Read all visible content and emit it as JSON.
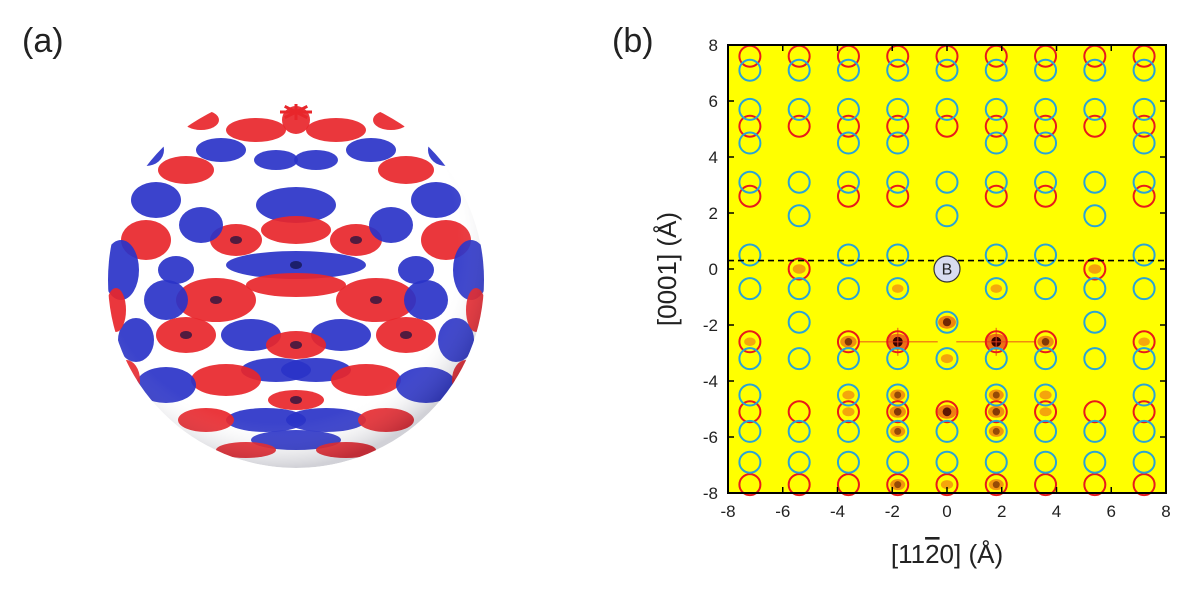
{
  "panels": {
    "a": "(a)",
    "b": "(b)"
  },
  "sphere": {
    "colors": {
      "red": "#e8262b",
      "blue": "#2a33c8",
      "white": "#ffffff",
      "dark": "#101040"
    }
  },
  "chart_data": {
    "type": "scatter",
    "title": "",
    "xlabel": "[11̅2̅0] (Å)",
    "xlabel_parts": {
      "pre": "[11",
      "bar": "2",
      "post": "0] (Å)"
    },
    "ylabel": "[0001] (Å)",
    "xlim": [
      -8,
      8
    ],
    "ylim": [
      -8,
      8
    ],
    "xticks": [
      "-8",
      "-6",
      "-4",
      "-2",
      "0",
      "2",
      "4",
      "6",
      "8"
    ],
    "yticks": [
      "8",
      "6",
      "4",
      "2",
      "0",
      "-2",
      "-4",
      "-6",
      "-8"
    ],
    "background_color": "#ffff00",
    "dashed_line_y": 0.3,
    "center_marker": {
      "label": "B",
      "x": 0,
      "y": 0
    },
    "series": [
      {
        "color": "#e81a1a",
        "points": [
          [
            -7.2,
            7.6
          ],
          [
            -5.4,
            7.6
          ],
          [
            -3.6,
            7.6
          ],
          [
            -1.8,
            7.6
          ],
          [
            0,
            7.6
          ],
          [
            1.8,
            7.6
          ],
          [
            3.6,
            7.6
          ],
          [
            5.4,
            7.6
          ],
          [
            7.2,
            7.6
          ],
          [
            -7.2,
            5.1
          ],
          [
            -5.4,
            5.1
          ],
          [
            -3.6,
            5.1
          ],
          [
            -1.8,
            5.1
          ],
          [
            0,
            5.1
          ],
          [
            1.8,
            5.1
          ],
          [
            3.6,
            5.1
          ],
          [
            5.4,
            5.1
          ],
          [
            7.2,
            5.1
          ],
          [
            -7.2,
            2.6
          ],
          [
            -3.6,
            2.6
          ],
          [
            -1.8,
            2.6
          ],
          [
            1.8,
            2.6
          ],
          [
            3.6,
            2.6
          ],
          [
            7.2,
            2.6
          ],
          [
            -5.4,
            0
          ],
          [
            5.4,
            0
          ],
          [
            -7.2,
            -2.6
          ],
          [
            -3.6,
            -2.6
          ],
          [
            -1.8,
            -2.6
          ],
          [
            1.8,
            -2.6
          ],
          [
            3.6,
            -2.6
          ],
          [
            7.2,
            -2.6
          ],
          [
            -7.2,
            -5.1
          ],
          [
            -5.4,
            -5.1
          ],
          [
            -3.6,
            -5.1
          ],
          [
            -1.8,
            -5.1
          ],
          [
            0,
            -5.1
          ],
          [
            1.8,
            -5.1
          ],
          [
            3.6,
            -5.1
          ],
          [
            5.4,
            -5.1
          ],
          [
            7.2,
            -5.1
          ],
          [
            -7.2,
            -7.7
          ],
          [
            -5.4,
            -7.7
          ],
          [
            -3.6,
            -7.7
          ],
          [
            -1.8,
            -7.7
          ],
          [
            0,
            -7.7
          ],
          [
            1.8,
            -7.7
          ],
          [
            3.6,
            -7.7
          ],
          [
            5.4,
            -7.7
          ],
          [
            7.2,
            -7.7
          ]
        ]
      },
      {
        "color": "#29a3d6",
        "points": [
          [
            -7.2,
            7.1
          ],
          [
            -5.4,
            7.1
          ],
          [
            -3.6,
            7.1
          ],
          [
            -1.8,
            7.1
          ],
          [
            0,
            7.1
          ],
          [
            1.8,
            7.1
          ],
          [
            3.6,
            7.1
          ],
          [
            5.4,
            7.1
          ],
          [
            7.2,
            7.1
          ],
          [
            -7.2,
            5.7
          ],
          [
            -5.4,
            5.7
          ],
          [
            -3.6,
            5.7
          ],
          [
            -1.8,
            5.7
          ],
          [
            0,
            5.7
          ],
          [
            1.8,
            5.7
          ],
          [
            3.6,
            5.7
          ],
          [
            5.4,
            5.7
          ],
          [
            7.2,
            5.7
          ],
          [
            -7.2,
            4.5
          ],
          [
            -3.6,
            4.5
          ],
          [
            -1.8,
            4.5
          ],
          [
            1.8,
            4.5
          ],
          [
            3.6,
            4.5
          ],
          [
            7.2,
            4.5
          ],
          [
            -7.2,
            3.1
          ],
          [
            -5.4,
            3.1
          ],
          [
            -3.6,
            3.1
          ],
          [
            -1.8,
            3.1
          ],
          [
            0,
            3.1
          ],
          [
            1.8,
            3.1
          ],
          [
            3.6,
            3.1
          ],
          [
            5.4,
            3.1
          ],
          [
            7.2,
            3.1
          ],
          [
            -5.4,
            1.9
          ],
          [
            0,
            1.9
          ],
          [
            5.4,
            1.9
          ],
          [
            -7.2,
            0.5
          ],
          [
            -3.6,
            0.5
          ],
          [
            -1.8,
            0.5
          ],
          [
            1.8,
            0.5
          ],
          [
            3.6,
            0.5
          ],
          [
            7.2,
            0.5
          ],
          [
            -7.2,
            -0.7
          ],
          [
            -5.4,
            -0.7
          ],
          [
            -3.6,
            -0.7
          ],
          [
            -1.8,
            -0.7
          ],
          [
            1.8,
            -0.7
          ],
          [
            3.6,
            -0.7
          ],
          [
            5.4,
            -0.7
          ],
          [
            7.2,
            -0.7
          ],
          [
            -5.4,
            -1.9
          ],
          [
            0,
            -1.9
          ],
          [
            5.4,
            -1.9
          ],
          [
            -7.2,
            -3.2
          ],
          [
            -5.4,
            -3.2
          ],
          [
            -3.6,
            -3.2
          ],
          [
            -1.8,
            -3.2
          ],
          [
            0,
            -3.2
          ],
          [
            1.8,
            -3.2
          ],
          [
            3.6,
            -3.2
          ],
          [
            5.4,
            -3.2
          ],
          [
            7.2,
            -3.2
          ],
          [
            -7.2,
            -4.5
          ],
          [
            -3.6,
            -4.5
          ],
          [
            -1.8,
            -4.5
          ],
          [
            1.8,
            -4.5
          ],
          [
            3.6,
            -4.5
          ],
          [
            7.2,
            -4.5
          ],
          [
            -7.2,
            -5.8
          ],
          [
            -5.4,
            -5.8
          ],
          [
            -3.6,
            -5.8
          ],
          [
            -1.8,
            -5.8
          ],
          [
            0,
            -5.8
          ],
          [
            1.8,
            -5.8
          ],
          [
            3.6,
            -5.8
          ],
          [
            5.4,
            -5.8
          ],
          [
            7.2,
            -5.8
          ],
          [
            -7.2,
            -6.9
          ],
          [
            -5.4,
            -6.9
          ],
          [
            -3.6,
            -6.9
          ],
          [
            -1.8,
            -6.9
          ],
          [
            0,
            -6.9
          ],
          [
            1.8,
            -6.9
          ],
          [
            3.6,
            -6.9
          ],
          [
            5.4,
            -6.9
          ],
          [
            7.2,
            -6.9
          ]
        ]
      }
    ],
    "intensity_spots": [
      [
        -1.8,
        -2.6,
        1.0
      ],
      [
        1.8,
        -2.6,
        1.0
      ],
      [
        0,
        -1.9,
        0.7
      ],
      [
        -3.6,
        -2.6,
        0.6
      ],
      [
        3.6,
        -2.6,
        0.6
      ],
      [
        0,
        -5.1,
        0.8
      ],
      [
        -1.8,
        -5.1,
        0.6
      ],
      [
        1.8,
        -5.1,
        0.6
      ],
      [
        -1.8,
        -4.5,
        0.5
      ],
      [
        1.8,
        -4.5,
        0.5
      ],
      [
        -1.8,
        -5.8,
        0.5
      ],
      [
        1.8,
        -5.8,
        0.5
      ],
      [
        -1.8,
        -7.7,
        0.5
      ],
      [
        1.8,
        -7.7,
        0.5
      ],
      [
        0,
        -7.7,
        0.3
      ],
      [
        -3.6,
        -4.5,
        0.3
      ],
      [
        3.6,
        -4.5,
        0.3
      ],
      [
        -3.6,
        -5.1,
        0.3
      ],
      [
        3.6,
        -5.1,
        0.3
      ],
      [
        -5.4,
        0,
        0.35
      ],
      [
        5.4,
        0,
        0.35
      ],
      [
        -7.2,
        -2.6,
        0.25
      ],
      [
        7.2,
        -2.6,
        0.25
      ],
      [
        -1.8,
        -0.7,
        0.25
      ],
      [
        1.8,
        -0.7,
        0.25
      ],
      [
        0,
        -3.2,
        0.3
      ]
    ]
  }
}
